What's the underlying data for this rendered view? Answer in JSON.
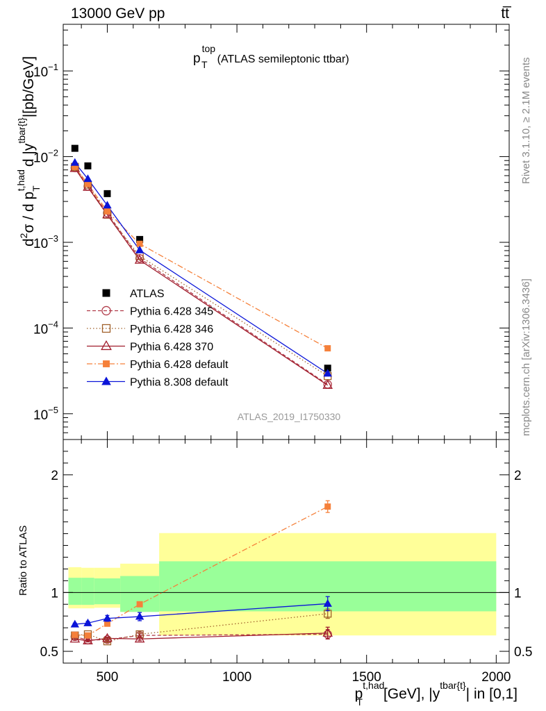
{
  "header": {
    "energy_label": "13000 GeV pp",
    "process_label": "tt̅"
  },
  "side_labels": {
    "rivet": "Rivet 3.1.10, ≥ 2.1M events",
    "source": "mcplots.cern.ch [arXiv:1306.3436]"
  },
  "chart_data": {
    "type": "line",
    "title_main": "p",
    "title_sup": "top",
    "title_sub": "T",
    "title_rest": "(ATLAS semileptonic ttbar)",
    "watermark": "ATLAS_2019_I1750330",
    "xlabel": {
      "main": "p",
      "sup": "t,had",
      "sub": "T",
      "rest": "[GeV], |y",
      "sup2": "tbar{t}",
      "rest2": "| in [0,1]"
    },
    "ylabel": {
      "pre": "d",
      "sup": "2",
      "sigma": "σ / d p",
      "sub": "T",
      "sup_had": "t,had",
      "mid": "d |y",
      "sup_t": "tbar{t}",
      "post": "|[pb/GeV]"
    },
    "ratio_ylabel": "Ratio to ATLAS",
    "xlim": [
      330,
      2050
    ],
    "ylim": [
      5e-06,
      0.35
    ],
    "yscale": "log",
    "ratio_ylim": [
      0.4,
      2.3
    ],
    "x_ticks": [
      {
        "value": 500,
        "label": "500"
      },
      {
        "value": 1000,
        "label": "1000"
      },
      {
        "value": 1500,
        "label": "1500"
      },
      {
        "value": 2000,
        "label": "2000"
      }
    ],
    "y_ticks": [
      {
        "value": 0.1,
        "base": "10",
        "exp": "−1"
      },
      {
        "value": 0.01,
        "base": "10",
        "exp": "−2"
      },
      {
        "value": 0.001,
        "base": "10",
        "exp": "−3"
      },
      {
        "value": 0.0001,
        "base": "10",
        "exp": "−4"
      },
      {
        "value": 1e-05,
        "base": "10",
        "exp": "−5"
      }
    ],
    "ratio_ticks": [
      {
        "value": 0.5,
        "label": "0.5"
      },
      {
        "value": 1,
        "label": "1"
      },
      {
        "value": 2,
        "label": "2"
      }
    ],
    "bins": [
      {
        "lo": 350,
        "hi": 400,
        "x": 375
      },
      {
        "lo": 400,
        "hi": 450,
        "x": 425
      },
      {
        "lo": 450,
        "hi": 550,
        "x": 500
      },
      {
        "lo": 550,
        "hi": 700,
        "x": 625
      },
      {
        "lo": 700,
        "hi": 2000,
        "x": 1350
      }
    ],
    "data": {
      "name": "ATLAS",
      "y": [
        0.0125,
        0.0078,
        0.0037,
        0.00108,
        3.4e-05
      ]
    },
    "bands": [
      {
        "lo": 350,
        "hi": 400,
        "stat": [
          0.895,
          1.125
        ],
        "total": [
          0.865,
          1.215
        ]
      },
      {
        "lo": 400,
        "hi": 450,
        "stat": [
          0.895,
          1.125
        ],
        "total": [
          0.865,
          1.21
        ]
      },
      {
        "lo": 450,
        "hi": 550,
        "stat": [
          0.9,
          1.12
        ],
        "total": [
          0.87,
          1.21
        ]
      },
      {
        "lo": 550,
        "hi": 700,
        "stat": [
          0.835,
          1.14
        ],
        "total": [
          0.835,
          1.245
        ]
      },
      {
        "lo": 700,
        "hi": 2000,
        "stat": [
          0.84,
          1.265
        ],
        "total": [
          0.635,
          1.505
        ]
      }
    ],
    "series": [
      {
        "name": "Pythia 6.428 345",
        "color": "#b03a48",
        "dash": "5,3",
        "marker": "circle-open",
        "y": [
          0.0074,
          0.0045,
          0.0022,
          0.00065,
          2.2e-05
        ],
        "ratio": [
          0.625,
          0.595,
          0.6,
          0.635,
          0.645
        ],
        "ratio_err": [
          0.01,
          0.01,
          0.01,
          0.015,
          0.04
        ]
      },
      {
        "name": "Pythia 6.428 346",
        "color": "#a0602a",
        "dash": "1.5,3",
        "marker": "square-open",
        "y": [
          0.0076,
          0.0047,
          0.0021,
          0.00069,
          2.75e-05
        ],
        "ratio": [
          0.635,
          0.645,
          0.585,
          0.645,
          0.82
        ],
        "ratio_err": [
          0.01,
          0.01,
          0.01,
          0.015,
          0.04
        ]
      },
      {
        "name": "Pythia 6.428 370",
        "color": "#a01c2c",
        "dash": "",
        "marker": "triangle-open",
        "y": [
          0.0073,
          0.0044,
          0.0021,
          0.00062,
          2.15e-05
        ],
        "ratio": [
          0.605,
          0.59,
          0.61,
          0.605,
          0.655
        ],
        "ratio_err": [
          0.01,
          0.01,
          0.01,
          0.015,
          0.05
        ]
      },
      {
        "name": "Pythia 6.428 default",
        "color": "#f5803a",
        "dash": "8,3,2,3",
        "marker": "square-filled",
        "y": [
          0.0076,
          0.0048,
          0.0023,
          0.00096,
          5.8e-05
        ],
        "ratio": [
          0.64,
          0.635,
          0.735,
          0.9,
          1.73
        ],
        "ratio_err": [
          0.01,
          0.01,
          0.015,
          0.02,
          0.05
        ]
      },
      {
        "name": "Pythia 8.308 default",
        "color": "#0a14d8",
        "dash": "",
        "marker": "triangle-filled",
        "y": [
          0.0085,
          0.0055,
          0.0027,
          0.00081,
          2.95e-05
        ],
        "ratio": [
          0.73,
          0.74,
          0.78,
          0.795,
          0.905
        ],
        "ratio_err": [
          0.01,
          0.015,
          0.025,
          0.035,
          0.06
        ]
      }
    ]
  }
}
